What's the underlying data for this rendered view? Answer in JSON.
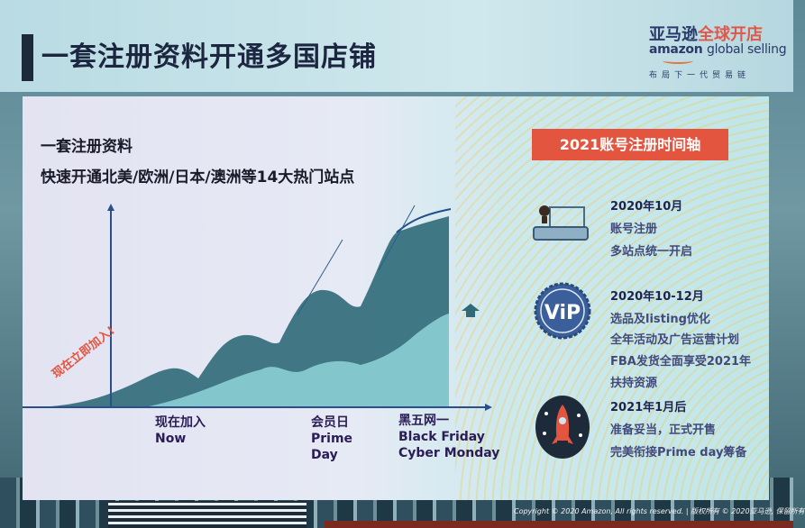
{
  "slide": {
    "title": "一套注册资料开通多国店铺",
    "logo": {
      "cn_brand": "亚马逊",
      "cn_highlight": "全球开店",
      "en_brand": "amazon",
      "en_rest": "global selling",
      "tagline": "布局下一代贸易链"
    },
    "lead": "一套注册资料",
    "subtitle": "快速开通北美/欧洲/日本/澳洲等14大热门站点",
    "callout": "现在立即加入!",
    "milestones": [
      {
        "cn": "现在加入",
        "en1": "Now",
        "en2": ""
      },
      {
        "cn": "会员日",
        "en1": "Prime",
        "en2": "Day"
      },
      {
        "cn": "黑五网一",
        "en1": "Black Friday",
        "en2": "Cyber Monday"
      }
    ],
    "timeline_title": "2021账号注册时间轴",
    "timeline": [
      {
        "date": "2020年10月",
        "icon": "registration-person-icon",
        "lines": [
          "账号注册",
          "多站点统一开启"
        ]
      },
      {
        "date": "2020年10-12月",
        "icon": "vip-badge-icon",
        "lines": [
          "选品及listing优化",
          "全年活动及广告运营计划",
          "FBA发货全面享受2021年",
          "扶持资源"
        ]
      },
      {
        "date": "2021年1月后",
        "icon": "rocket-icon",
        "lines": [
          "准备妥当，正式开售",
          "完美衔接Prime day筹备"
        ]
      }
    ],
    "copyright": "Copyright © 2020 Amazon, All rights reserved. | 版权所有 © 2020亚马逊, 保留所有"
  },
  "colors": {
    "accent": "#e4553f",
    "title": "#1d2640",
    "area_dark": "#2f6a78",
    "area_light": "#8fd3d8"
  }
}
